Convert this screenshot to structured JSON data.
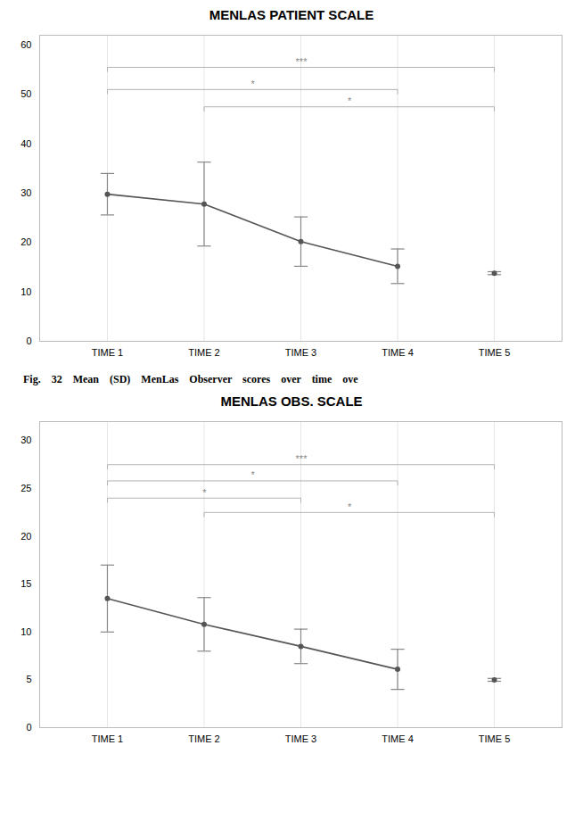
{
  "chart_data": [
    {
      "type": "line",
      "title": "MENLAS PATIENT SCALE",
      "caption": "Fig.    32    Mean    (SD)    MenLas    Observer    scores    over    time    ove",
      "categories": [
        "TIME 1",
        "TIME 2",
        "TIME 3",
        "TIME 4",
        "TIME 5"
      ],
      "values": [
        29.8,
        27.8,
        20.2,
        15.2,
        13.8
      ],
      "errors": [
        4.2,
        8.5,
        5.0,
        3.5,
        0.3
      ],
      "connected_up_to": 4,
      "color": "#555555",
      "marker": "o",
      "ylim": [
        0,
        62
      ],
      "yticks": [
        0,
        10,
        20,
        30,
        40,
        50,
        60
      ],
      "grid": "x",
      "brackets": [
        {
          "x1": "TIME 1",
          "x2": "TIME 4",
          "y": 51.0,
          "label": "*"
        },
        {
          "x1": "TIME 1",
          "x2": "TIME 5",
          "y": 55.5,
          "label": "***"
        },
        {
          "x1": "TIME 2",
          "x2": "TIME 5",
          "y": 47.5,
          "label": "*"
        }
      ]
    },
    {
      "type": "line",
      "title": "MENLAS OBS. SCALE",
      "categories": [
        "TIME 1",
        "TIME 2",
        "TIME 3",
        "TIME 4",
        "TIME 5"
      ],
      "values": [
        13.5,
        10.8,
        8.5,
        6.1,
        5.0
      ],
      "errors": [
        3.5,
        2.8,
        1.8,
        2.1,
        0.15
      ],
      "connected_up_to": 4,
      "color": "#555555",
      "marker": "o",
      "ylim": [
        0,
        32
      ],
      "yticks": [
        0,
        5,
        10,
        15,
        20,
        25,
        30
      ],
      "grid": "x",
      "brackets": [
        {
          "x1": "TIME 1",
          "x2": "TIME 3",
          "y": 24.0,
          "label": "*"
        },
        {
          "x1": "TIME 1",
          "x2": "TIME 4",
          "y": 25.8,
          "label": "*"
        },
        {
          "x1": "TIME 1",
          "x2": "TIME 5",
          "y": 27.5,
          "label": "***"
        },
        {
          "x1": "TIME 2",
          "x2": "TIME 5",
          "y": 22.5,
          "label": "*"
        }
      ]
    }
  ]
}
